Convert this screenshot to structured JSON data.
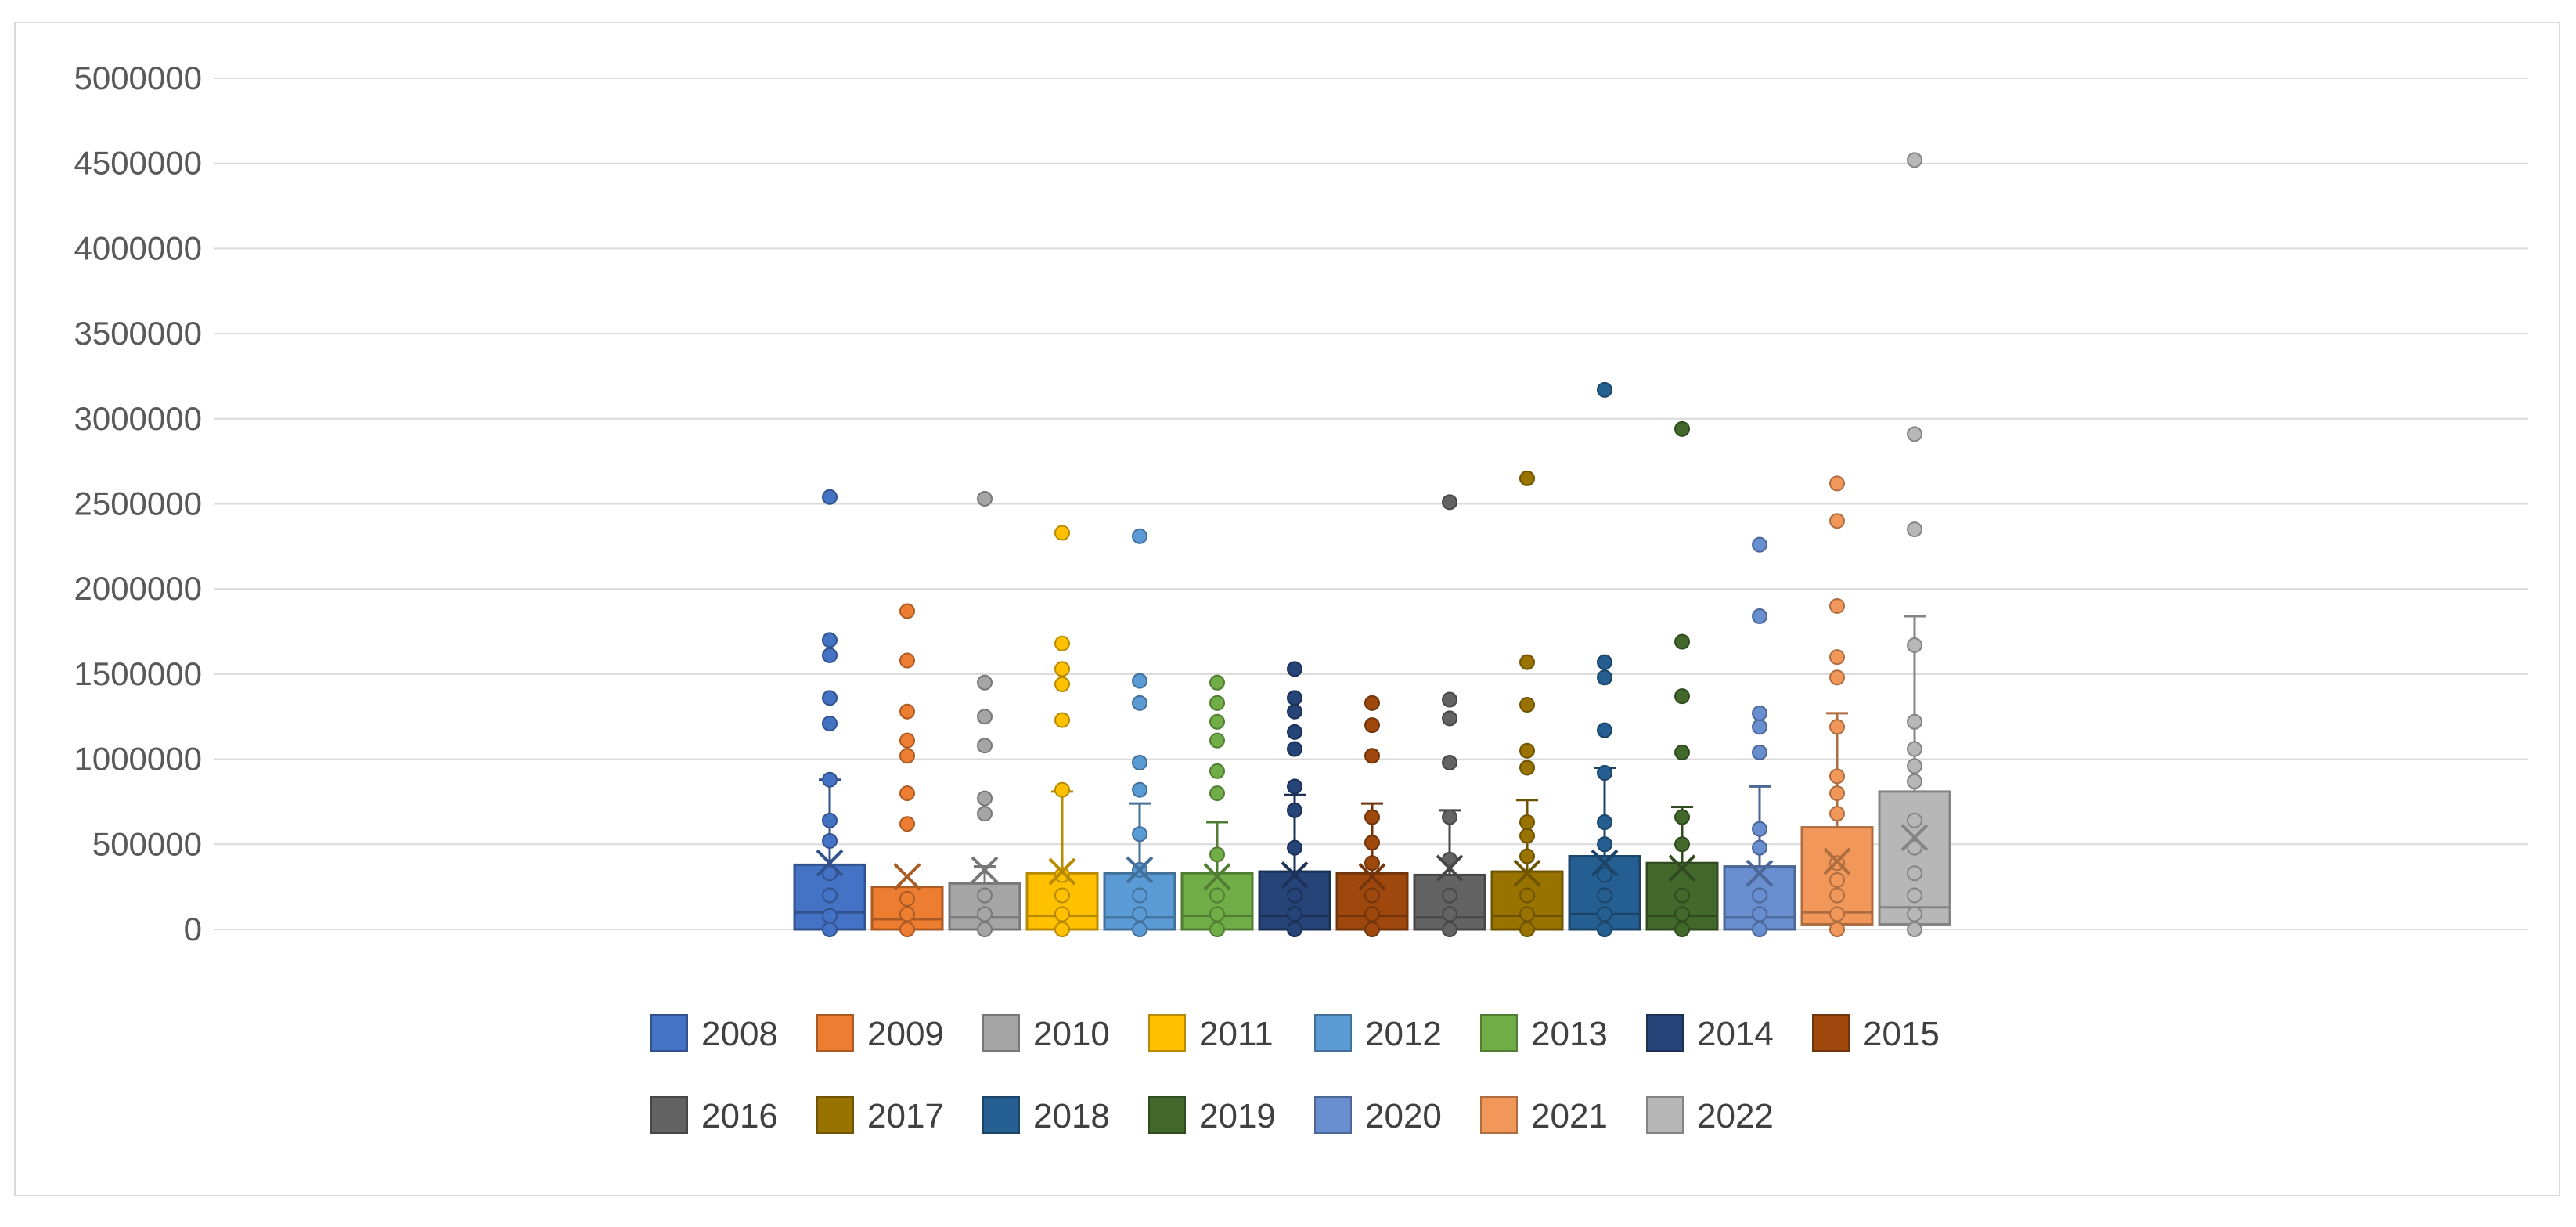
{
  "chart_data": {
    "type": "box",
    "title": "",
    "xlabel": "",
    "ylabel": "",
    "ylim": [
      0,
      5000000
    ],
    "yticks": [
      0,
      500000,
      1000000,
      1500000,
      2000000,
      2500000,
      3000000,
      3500000,
      4000000,
      4500000,
      5000000
    ],
    "ytick_labels": [
      "0",
      "500000",
      "1000000",
      "1500000",
      "2000000",
      "2500000",
      "3000000",
      "3500000",
      "4000000",
      "4500000",
      "5000000"
    ],
    "grid": true,
    "legend_position": "bottom",
    "series": [
      {
        "name": "2008",
        "color": "#4472c4",
        "q1": 0,
        "median": 100000,
        "q3": 380000,
        "mean": 390000,
        "whisker_low": 0,
        "whisker_high": 880000,
        "points": [
          0,
          80000,
          200000,
          330000,
          520000,
          640000,
          880000,
          1210000,
          1360000,
          1610000,
          1700000,
          2540000
        ]
      },
      {
        "name": "2009",
        "color": "#ed7d31",
        "q1": 0,
        "median": 60000,
        "q3": 250000,
        "mean": 310000,
        "whisker_low": 0,
        "whisker_high": 250000,
        "points": [
          0,
          90000,
          180000,
          620000,
          800000,
          1020000,
          1110000,
          1280000,
          1580000,
          1870000
        ]
      },
      {
        "name": "2010",
        "color": "#a5a5a5",
        "q1": 0,
        "median": 70000,
        "q3": 270000,
        "mean": 350000,
        "whisker_low": 0,
        "whisker_high": 370000,
        "points": [
          0,
          90000,
          200000,
          680000,
          770000,
          1080000,
          1250000,
          1450000,
          2530000
        ]
      },
      {
        "name": "2011",
        "color": "#ffc000",
        "q1": 0,
        "median": 80000,
        "q3": 330000,
        "mean": 340000,
        "whisker_low": 0,
        "whisker_high": 810000,
        "points": [
          0,
          90000,
          200000,
          320000,
          820000,
          1230000,
          1440000,
          1530000,
          1680000,
          2330000
        ]
      },
      {
        "name": "2012",
        "color": "#5b9bd5",
        "q1": 0,
        "median": 70000,
        "q3": 330000,
        "mean": 350000,
        "whisker_low": 0,
        "whisker_high": 740000,
        "points": [
          0,
          90000,
          200000,
          350000,
          560000,
          820000,
          980000,
          1330000,
          1460000,
          2310000
        ]
      },
      {
        "name": "2013",
        "color": "#70ad47",
        "q1": 0,
        "median": 80000,
        "q3": 330000,
        "mean": 310000,
        "whisker_low": 0,
        "whisker_high": 630000,
        "points": [
          0,
          90000,
          200000,
          440000,
          800000,
          930000,
          1110000,
          1220000,
          1330000,
          1450000
        ]
      },
      {
        "name": "2014",
        "color": "#264478",
        "q1": 0,
        "median": 80000,
        "q3": 340000,
        "mean": 320000,
        "whisker_low": 0,
        "whisker_high": 790000,
        "points": [
          0,
          90000,
          200000,
          480000,
          700000,
          840000,
          1060000,
          1160000,
          1280000,
          1360000,
          1530000
        ]
      },
      {
        "name": "2015",
        "color": "#9e480e",
        "q1": 0,
        "median": 80000,
        "q3": 330000,
        "mean": 310000,
        "whisker_low": 0,
        "whisker_high": 740000,
        "points": [
          0,
          90000,
          200000,
          390000,
          510000,
          660000,
          1020000,
          1200000,
          1330000
        ]
      },
      {
        "name": "2016",
        "color": "#636363",
        "q1": 0,
        "median": 70000,
        "q3": 320000,
        "mean": 360000,
        "whisker_low": 0,
        "whisker_high": 700000,
        "points": [
          0,
          90000,
          200000,
          410000,
          660000,
          980000,
          1240000,
          1350000,
          2510000
        ]
      },
      {
        "name": "2017",
        "color": "#997300",
        "q1": 0,
        "median": 80000,
        "q3": 340000,
        "mean": 330000,
        "whisker_low": 0,
        "whisker_high": 760000,
        "points": [
          0,
          90000,
          200000,
          430000,
          550000,
          630000,
          950000,
          1050000,
          1320000,
          1570000,
          2650000
        ]
      },
      {
        "name": "2018",
        "color": "#255e91",
        "q1": 0,
        "median": 90000,
        "q3": 430000,
        "mean": 390000,
        "whisker_low": 0,
        "whisker_high": 950000,
        "points": [
          0,
          90000,
          200000,
          320000,
          500000,
          630000,
          920000,
          1170000,
          1480000,
          1570000,
          3170000
        ]
      },
      {
        "name": "2019",
        "color": "#43682b",
        "q1": 0,
        "median": 80000,
        "q3": 390000,
        "mean": 360000,
        "whisker_low": 0,
        "whisker_high": 720000,
        "points": [
          0,
          90000,
          200000,
          500000,
          660000,
          1040000,
          1370000,
          1690000,
          2940000
        ]
      },
      {
        "name": "2020",
        "color": "#698ed0",
        "q1": 0,
        "median": 70000,
        "q3": 370000,
        "mean": 330000,
        "whisker_low": 0,
        "whisker_high": 840000,
        "points": [
          0,
          90000,
          200000,
          480000,
          590000,
          1040000,
          1190000,
          1270000,
          1840000,
          2260000
        ]
      },
      {
        "name": "2021",
        "color": "#f1975a",
        "q1": 30000,
        "median": 100000,
        "q3": 600000,
        "mean": 400000,
        "whisker_low": 0,
        "whisker_high": 1270000,
        "points": [
          0,
          90000,
          200000,
          290000,
          390000,
          680000,
          800000,
          900000,
          1190000,
          1480000,
          1600000,
          1900000,
          2400000,
          2620000
        ]
      },
      {
        "name": "2022",
        "color": "#b7b7b7",
        "q1": 30000,
        "median": 130000,
        "q3": 810000,
        "mean": 540000,
        "whisker_low": 0,
        "whisker_high": 1840000,
        "points": [
          0,
          90000,
          200000,
          330000,
          480000,
          640000,
          870000,
          960000,
          1060000,
          1220000,
          1670000,
          2350000,
          2910000,
          4520000
        ]
      }
    ]
  }
}
